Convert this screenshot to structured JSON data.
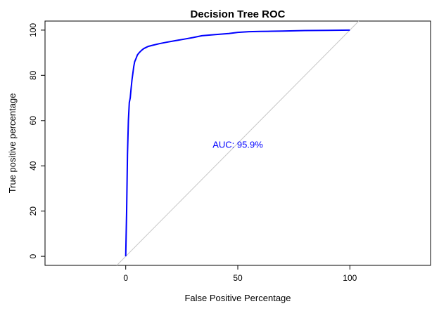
{
  "chart_data": {
    "type": "line",
    "title": "Decision Tree ROC",
    "xlabel": "False Positive Percentage",
    "ylabel": "True positive percentage",
    "xlim": [
      -36,
      136
    ],
    "ylim": [
      -4,
      104
    ],
    "x_ticks": [
      0,
      50,
      100
    ],
    "y_ticks": [
      0,
      20,
      40,
      60,
      80,
      100
    ],
    "x_tick_labels": [
      "0",
      "50",
      "100"
    ],
    "y_tick_labels": [
      "0",
      "20",
      "40",
      "60",
      "80",
      "100"
    ],
    "grid": false,
    "legend": "none",
    "colors": {
      "roc_curve": "#0000ff",
      "diagonal": "#c8c8c8",
      "annotation": "#0000ff",
      "axes": "#000000"
    },
    "annotation": {
      "text": "AUC: 95.9%",
      "x": 50,
      "y": 48
    },
    "diagonal": {
      "x": [
        -4,
        104
      ],
      "y": [
        -4,
        104
      ]
    },
    "series": [
      {
        "x": [
          0,
          0.4,
          0.8,
          1.2,
          1.6,
          2.0,
          2.4,
          2.8,
          3.2,
          3.6,
          4.0,
          4.6,
          5.2,
          6.0,
          7.0,
          8.0,
          9.0,
          10.0,
          12.0,
          15.0,
          18.0,
          22.0,
          26.0,
          30.0,
          34.0,
          40.0,
          46.0,
          50.0,
          55.0,
          60.0,
          65.0,
          70.0,
          80.0,
          90.0,
          100.0
        ],
        "y": [
          0,
          20,
          45,
          60,
          68,
          70,
          74,
          78,
          81,
          84,
          86,
          87.5,
          89,
          90,
          91,
          91.8,
          92.3,
          92.8,
          93.3,
          94,
          94.6,
          95.3,
          96,
          96.7,
          97.5,
          98,
          98.5,
          99,
          99.3,
          99.4,
          99.5,
          99.6,
          99.8,
          99.9,
          100
        ]
      }
    ]
  }
}
